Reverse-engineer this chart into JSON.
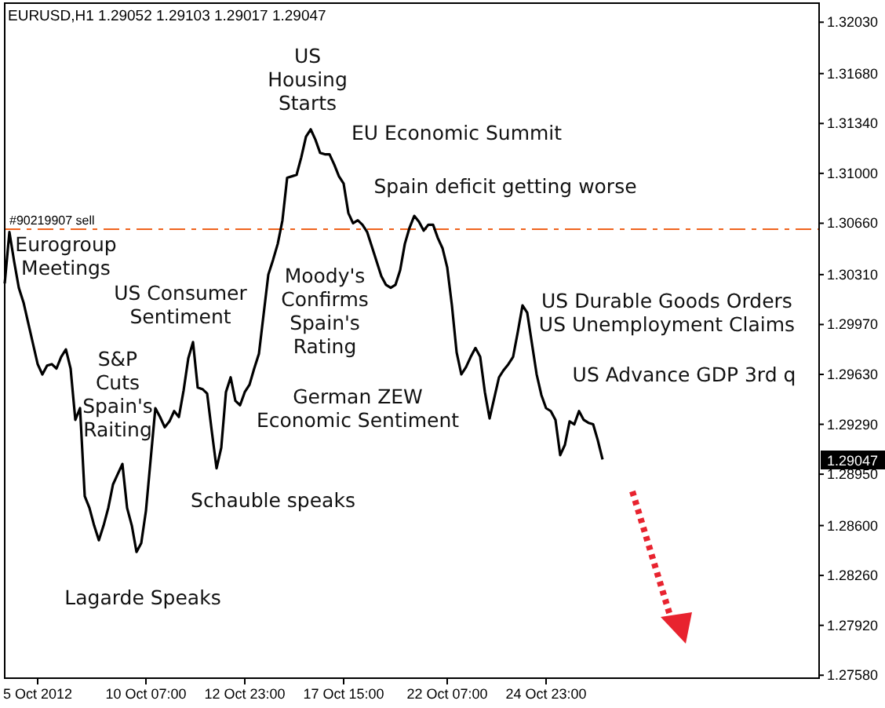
{
  "chart_data": {
    "type": "line",
    "title": "EURUSD,H1  1.29052 1.29103 1.29017 1.29047",
    "categories": [
      null,
      null,
      null,
      null,
      null,
      null,
      null,
      "5 Oct 2012",
      null,
      null,
      null,
      null,
      null,
      null,
      null,
      null,
      null,
      null,
      null,
      null,
      null,
      null,
      null,
      null,
      null,
      null,
      null,
      null,
      null,
      null,
      "10 Oct 07:00",
      null,
      null,
      null,
      null,
      null,
      null,
      null,
      null,
      null,
      null,
      null,
      null,
      null,
      null,
      null,
      null,
      null,
      null,
      null,
      null,
      "12 Oct 23:00",
      null,
      null,
      null,
      null,
      null,
      null,
      null,
      null,
      null,
      null,
      null,
      null,
      null,
      null,
      null,
      null,
      null,
      null,
      null,
      null,
      "17 Oct 15:00",
      null,
      null,
      null,
      null,
      null,
      null,
      null,
      null,
      null,
      null,
      null,
      null,
      null,
      null,
      null,
      null,
      null,
      null,
      null,
      null,
      null,
      "22 Oct 07:00",
      null,
      null,
      null,
      null,
      null,
      null,
      null,
      null,
      null,
      null,
      null,
      null,
      null,
      null,
      null,
      null,
      null,
      null,
      null,
      null,
      "24 Oct 23:00",
      null,
      null,
      null,
      null,
      null,
      null,
      null,
      null,
      null,
      null,
      null,
      null,
      null,
      null,
      null,
      null,
      null,
      null,
      null,
      null,
      null,
      null,
      null,
      null,
      null,
      null,
      null,
      null,
      null,
      null,
      null,
      null,
      null,
      null,
      null,
      null,
      null,
      null,
      null,
      null,
      null,
      null,
      null,
      null,
      null,
      null,
      null,
      null,
      null,
      null,
      null,
      null,
      null,
      null,
      null,
      null,
      null,
      null
    ],
    "series": [
      {
        "color": "#000000",
        "values": [
          1.3025,
          1.306,
          1.304,
          1.3022,
          1.3012,
          1.2998,
          1.2984,
          1.297,
          1.2963,
          1.2969,
          1.297,
          1.2967,
          1.2975,
          1.298,
          1.2967,
          1.2932,
          1.294,
          1.288,
          1.2872,
          1.286,
          1.285,
          1.286,
          1.2872,
          1.2888,
          1.2895,
          1.2902,
          1.2872,
          1.286,
          1.2842,
          1.2848,
          1.287,
          1.2905,
          1.294,
          1.2934,
          1.2927,
          1.2931,
          1.2938,
          1.2934,
          1.2952,
          1.2974,
          1.2985,
          1.2954,
          1.2953,
          1.295,
          1.2924,
          1.2899,
          1.2913,
          1.2951,
          1.2961,
          1.2945,
          1.2942,
          1.2951,
          1.2956,
          1.2967,
          1.2977,
          1.3004,
          1.3031,
          1.3041,
          1.3052,
          1.3068,
          1.3097,
          1.3098,
          1.3099,
          1.3111,
          1.3125,
          1.313,
          1.3123,
          1.3114,
          1.3113,
          1.3113,
          1.3106,
          1.3098,
          1.3093,
          1.3073,
          1.3066,
          1.3068,
          1.3065,
          1.306,
          1.305,
          1.304,
          1.303,
          1.3024,
          1.3022,
          1.3024,
          1.3034,
          1.3052,
          1.3063,
          1.3071,
          1.3067,
          1.3061,
          1.3065,
          1.3065,
          1.3056,
          1.3049,
          1.3036,
          1.301,
          1.2978,
          1.2963,
          1.2968,
          1.2975,
          1.2981,
          1.2975,
          1.2951,
          1.2933,
          1.2947,
          1.2961,
          1.2966,
          1.297,
          1.2975,
          1.2992,
          1.301,
          1.3005,
          1.2984,
          1.2963,
          1.2949,
          1.294,
          1.2938,
          1.2932,
          1.2908,
          1.2915,
          1.2931,
          1.2929,
          1.2938,
          1.2932,
          1.293,
          1.2929,
          1.2918,
          1.2905,
          null,
          null,
          null,
          null,
          null,
          null,
          null,
          null,
          null,
          null,
          null,
          null,
          null,
          null,
          null,
          null,
          null,
          null,
          null,
          null,
          null,
          null,
          null,
          null,
          null,
          null,
          null,
          null,
          null,
          null,
          null,
          null,
          null,
          null,
          null,
          null,
          null,
          null,
          null,
          null,
          null,
          null,
          null,
          null,
          null,
          null
        ]
      }
    ],
    "ylim": [
      1.2756,
      1.3216
    ],
    "yticks": [
      {
        "value": 1.3203,
        "label": "1.32030"
      },
      {
        "value": 1.3168,
        "label": "1.31680"
      },
      {
        "value": 1.3134,
        "label": "1.31340"
      },
      {
        "value": 1.31,
        "label": "1.31000"
      },
      {
        "value": 1.3066,
        "label": "1.30660"
      },
      {
        "value": 1.3031,
        "label": "1.30310"
      },
      {
        "value": 1.2997,
        "label": "1.29970"
      },
      {
        "value": 1.2963,
        "label": "1.29630"
      },
      {
        "value": 1.2929,
        "label": "1.29290"
      },
      {
        "value": 1.2895,
        "label": "1.28950"
      },
      {
        "value": 1.286,
        "label": "1.28600"
      },
      {
        "value": 1.2826,
        "label": "1.28260"
      },
      {
        "value": 1.2792,
        "label": "1.27920"
      },
      {
        "value": 1.2758,
        "label": "1.27580"
      }
    ],
    "ref_lines": [
      {
        "axis": "y",
        "value": 1.3062,
        "label": "#90219907 sell",
        "color": "#f0641e",
        "line_style": "dashed"
      }
    ],
    "annotations": [
      "Eurogroup\nMeetings",
      "US Consumer\nSentiment",
      "S&P\nCuts\nSpain's\nRaiting",
      "Lagarde Speaks",
      "Schauble speaks",
      "German ZEW\nEconomic Sentiment",
      "Moody's\nConfirms\nSpain's\nRating",
      "US\nHousing\nStarts",
      "EU Economic Summit",
      "Spain deficit getting worse",
      "US Durable Goods Orders\nUS Unemployment Claims",
      "US Advance GDP 3rd q",
      "1.29047"
    ],
    "line_style": "solid"
  }
}
